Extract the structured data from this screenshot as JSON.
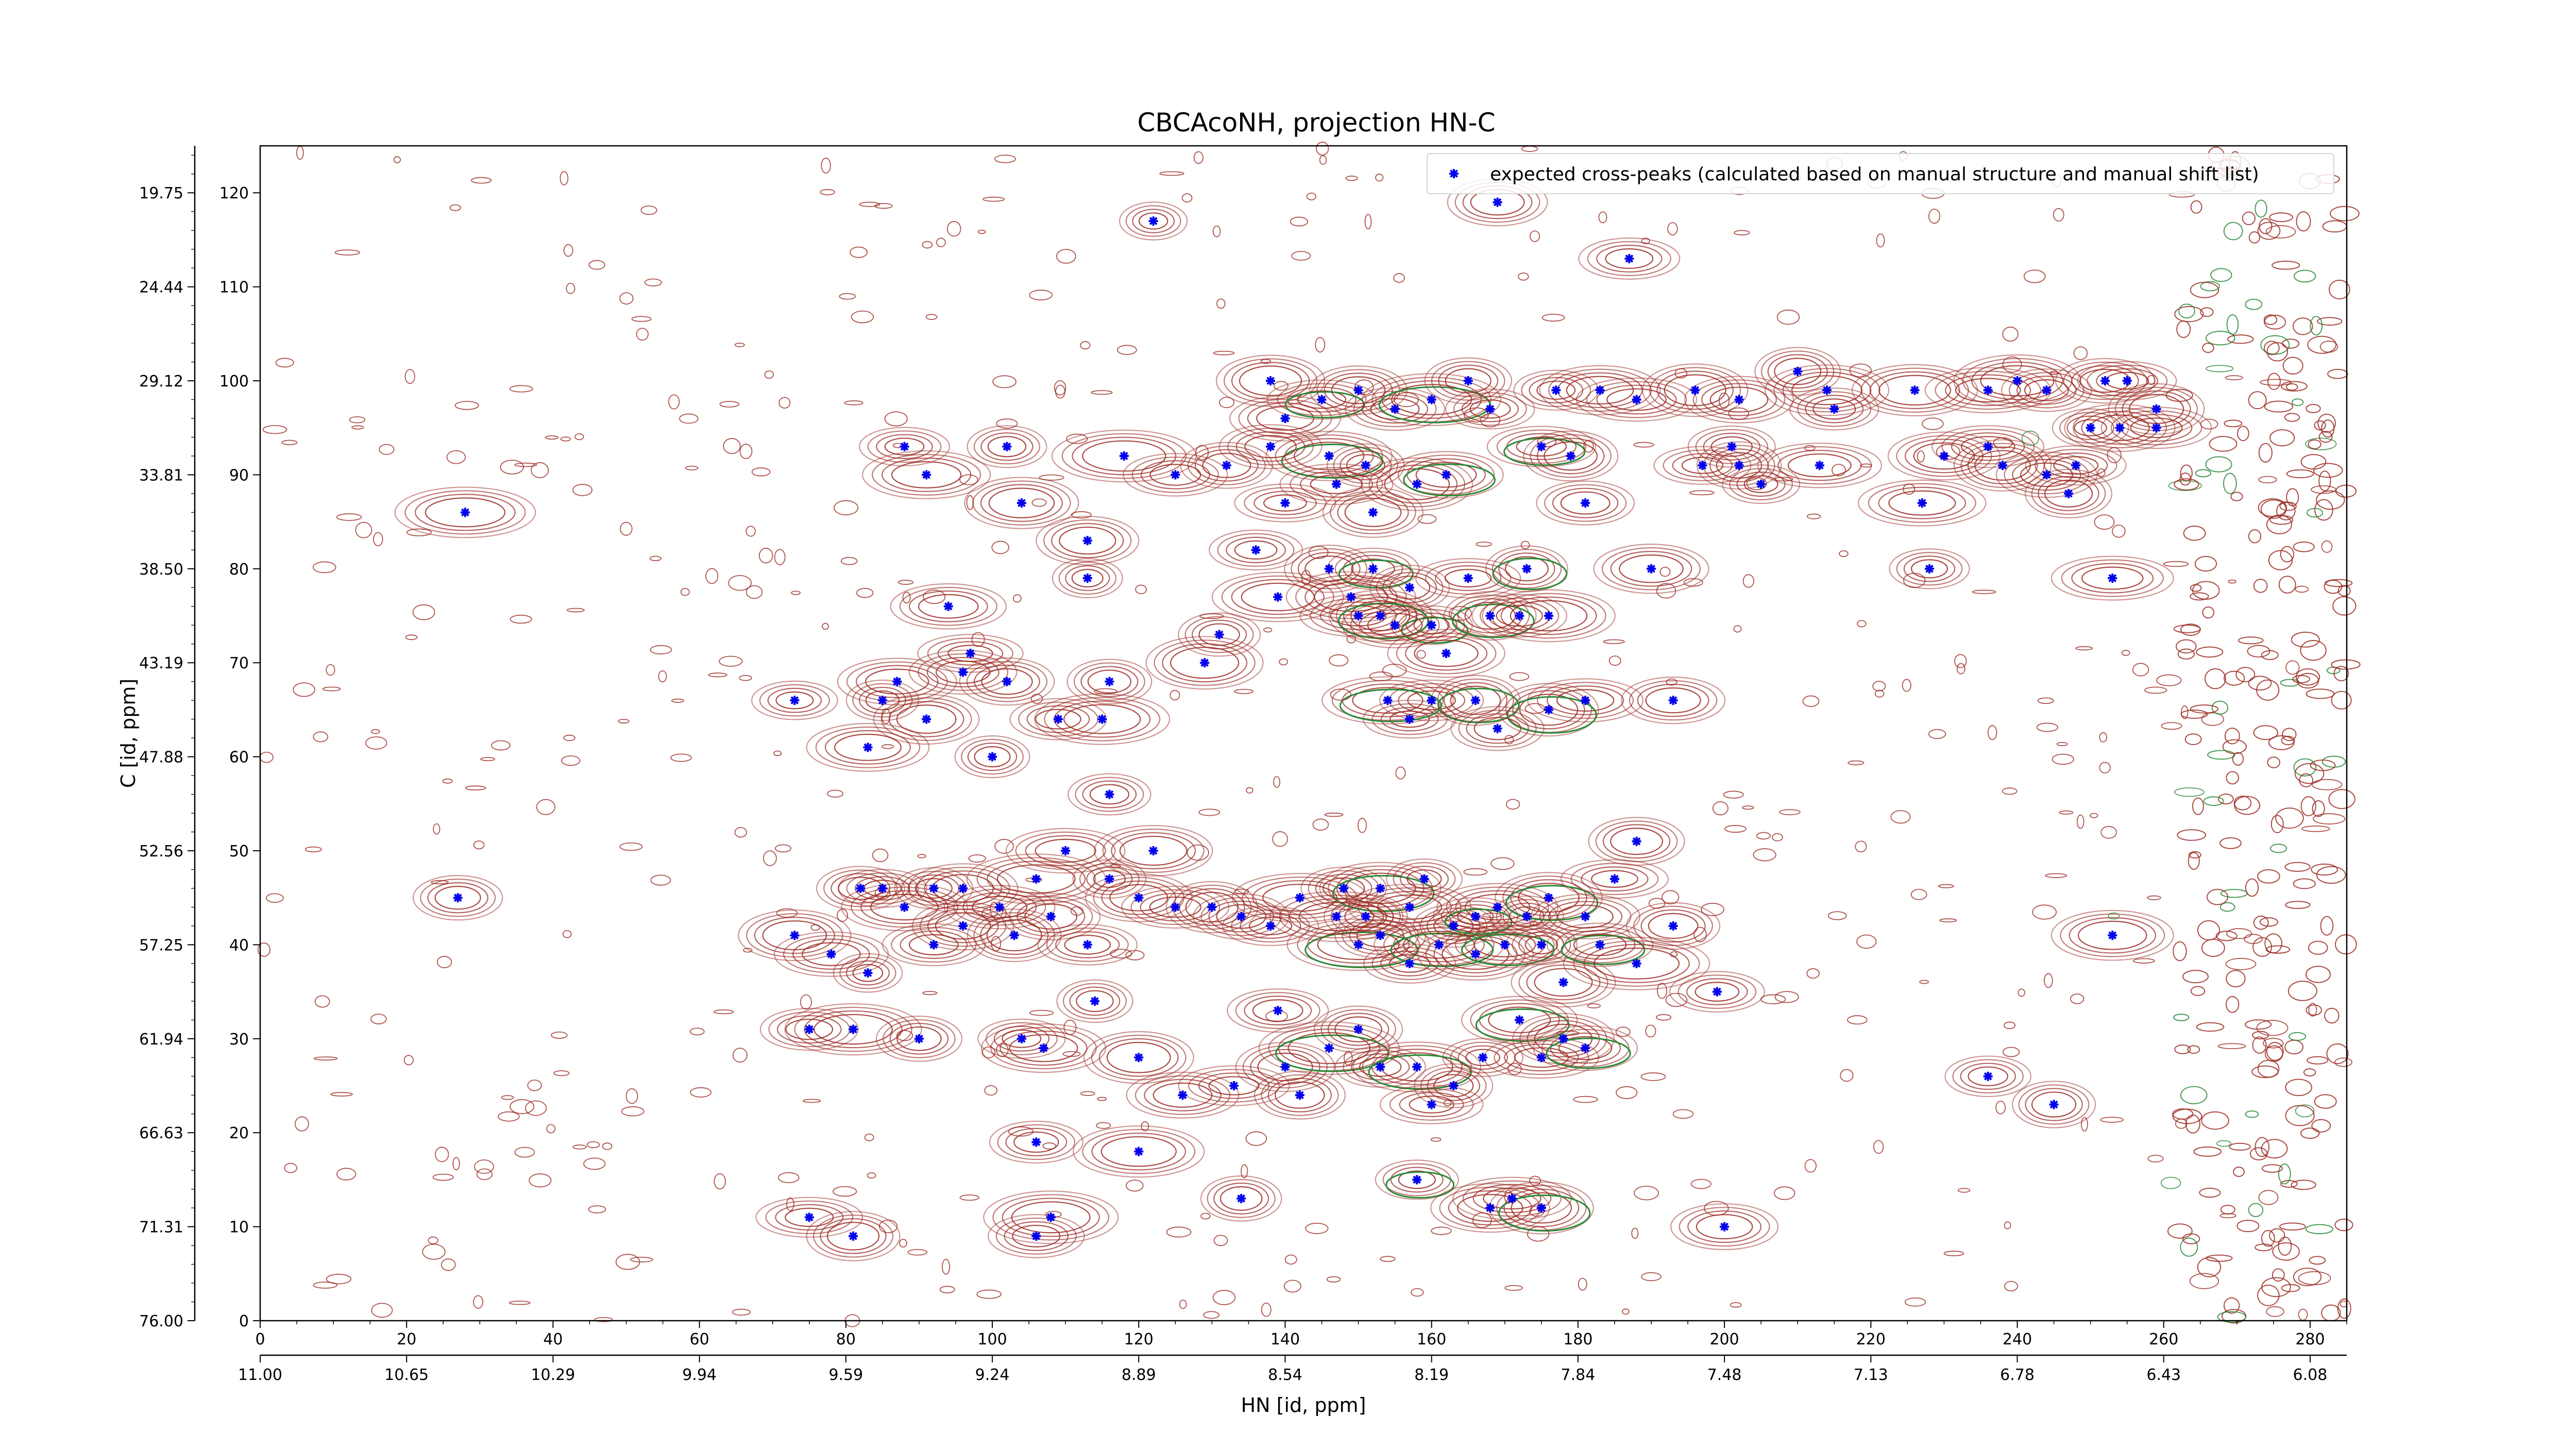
{
  "chart_data": {
    "type": "contour-scatter",
    "title": "CBCAcoNH, projection HN-C",
    "xlabel": "HN [id, ppm]",
    "ylabel": "C [id, ppm]",
    "xlim": [
      0,
      285
    ],
    "ylim": [
      0,
      125
    ],
    "x_ticks": [
      0,
      20,
      40,
      60,
      80,
      100,
      120,
      140,
      160,
      180,
      200,
      220,
      240,
      260,
      280
    ],
    "y_ticks": [
      0,
      10,
      20,
      30,
      40,
      50,
      60,
      70,
      80,
      90,
      100,
      110,
      120
    ],
    "secondary_x_ticks": [
      "11.00",
      "10.65",
      "10.29",
      "9.94",
      "9.59",
      "9.24",
      "8.89",
      "8.54",
      "8.19",
      "7.84",
      "7.48",
      "7.13",
      "6.78",
      "6.43",
      "6.08"
    ],
    "secondary_y_ticks": [
      "76.00",
      "71.31",
      "66.63",
      "61.94",
      "57.25",
      "52.56",
      "47.88",
      "43.19",
      "38.50",
      "33.81",
      "29.12",
      "24.44",
      "19.75"
    ],
    "legend": {
      "placement": "top-right",
      "label": "expected cross-peaks (calculated based on manual structure and manual shift list)"
    },
    "colors": {
      "marker": "#0000ee",
      "positive_contour": "#9b2b22",
      "negative_contour": "#2a8a3a"
    },
    "series": [
      {
        "name": "expected cross-peaks (calculated based on manual structure and manual shift list)",
        "points": [
          [
            122,
            117
          ],
          [
            169,
            119
          ],
          [
            187,
            113
          ],
          [
            28,
            86
          ],
          [
            27,
            45
          ],
          [
            88,
            93
          ],
          [
            91,
            90
          ],
          [
            102,
            93
          ],
          [
            104,
            87
          ],
          [
            94,
            76
          ],
          [
            113,
            79
          ],
          [
            113,
            83
          ],
          [
            125,
            90
          ],
          [
            118,
            92
          ],
          [
            132,
            91
          ],
          [
            136,
            82
          ],
          [
            139,
            77
          ],
          [
            131,
            73
          ],
          [
            129,
            70
          ],
          [
            87,
            68
          ],
          [
            85,
            66
          ],
          [
            91,
            64
          ],
          [
            96,
            69
          ],
          [
            97,
            71
          ],
          [
            102,
            68
          ],
          [
            109,
            64
          ],
          [
            115,
            64
          ],
          [
            116,
            68
          ],
          [
            73,
            66
          ],
          [
            83,
            61
          ],
          [
            100,
            60
          ],
          [
            138,
            100
          ],
          [
            140,
            96
          ],
          [
            145,
            98
          ],
          [
            150,
            99
          ],
          [
            155,
            97
          ],
          [
            160,
            98
          ],
          [
            165,
            100
          ],
          [
            168,
            97
          ],
          [
            146,
            92
          ],
          [
            151,
            91
          ],
          [
            158,
            89
          ],
          [
            162,
            90
          ],
          [
            147,
            89
          ],
          [
            152,
            86
          ],
          [
            138,
            93
          ],
          [
            140,
            87
          ],
          [
            146,
            80
          ],
          [
            152,
            80
          ],
          [
            149,
            77
          ],
          [
            157,
            78
          ],
          [
            160,
            74
          ],
          [
            162,
            71
          ],
          [
            150,
            75
          ],
          [
            153,
            75
          ],
          [
            155,
            74
          ],
          [
            165,
            79
          ],
          [
            168,
            75
          ],
          [
            172,
            75
          ],
          [
            176,
            75
          ],
          [
            173,
            80
          ],
          [
            177,
            99
          ],
          [
            183,
            99
          ],
          [
            188,
            98
          ],
          [
            196,
            99
          ],
          [
            202,
            98
          ],
          [
            175,
            93
          ],
          [
            179,
            92
          ],
          [
            181,
            87
          ],
          [
            197,
            91
          ],
          [
            202,
            91
          ],
          [
            201,
            93
          ],
          [
            214,
            99
          ],
          [
            213,
            91
          ],
          [
            205,
            89
          ],
          [
            230,
            92
          ],
          [
            236,
            93
          ],
          [
            238,
            91
          ],
          [
            244,
            90
          ],
          [
            248,
            91
          ],
          [
            247,
            88
          ],
          [
            244,
            99
          ],
          [
            240,
            100
          ],
          [
            227,
            87
          ],
          [
            228,
            80
          ],
          [
            190,
            80
          ],
          [
            181,
            66
          ],
          [
            176,
            65
          ],
          [
            193,
            66
          ],
          [
            160,
            66
          ],
          [
            166,
            66
          ],
          [
            169,
            63
          ],
          [
            157,
            64
          ],
          [
            154,
            66
          ],
          [
            116,
            56
          ],
          [
            122,
            50
          ],
          [
            110,
            50
          ],
          [
            116,
            47
          ],
          [
            120,
            45
          ],
          [
            125,
            44
          ],
          [
            130,
            44
          ],
          [
            134,
            43
          ],
          [
            138,
            42
          ],
          [
            142,
            45
          ],
          [
            148,
            46
          ],
          [
            153,
            46
          ],
          [
            157,
            44
          ],
          [
            159,
            47
          ],
          [
            96,
            46
          ],
          [
            101,
            44
          ],
          [
            103,
            41
          ],
          [
            108,
            43
          ],
          [
            113,
            40
          ],
          [
            106,
            47
          ],
          [
            82,
            46
          ],
          [
            85,
            46
          ],
          [
            88,
            44
          ],
          [
            92,
            46
          ],
          [
            73,
            41
          ],
          [
            78,
            39
          ],
          [
            83,
            37
          ],
          [
            96,
            42
          ],
          [
            92,
            40
          ],
          [
            150,
            40
          ],
          [
            153,
            41
          ],
          [
            157,
            38
          ],
          [
            161,
            40
          ],
          [
            163,
            42
          ],
          [
            166,
            39
          ],
          [
            170,
            40
          ],
          [
            175,
            40
          ],
          [
            178,
            36
          ],
          [
            183,
            40
          ],
          [
            188,
            38
          ],
          [
            193,
            42
          ],
          [
            199,
            35
          ],
          [
            147,
            43
          ],
          [
            151,
            43
          ],
          [
            166,
            43
          ],
          [
            169,
            44
          ],
          [
            173,
            43
          ],
          [
            176,
            45
          ],
          [
            181,
            43
          ],
          [
            185,
            47
          ],
          [
            188,
            51
          ],
          [
            75,
            31
          ],
          [
            81,
            31
          ],
          [
            90,
            30
          ],
          [
            104,
            30
          ],
          [
            107,
            29
          ],
          [
            114,
            34
          ],
          [
            120,
            28
          ],
          [
            126,
            24
          ],
          [
            133,
            25
          ],
          [
            140,
            27
          ],
          [
            139,
            33
          ],
          [
            146,
            29
          ],
          [
            150,
            31
          ],
          [
            153,
            27
          ],
          [
            158,
            27
          ],
          [
            163,
            25
          ],
          [
            167,
            28
          ],
          [
            172,
            32
          ],
          [
            175,
            28
          ],
          [
            178,
            30
          ],
          [
            181,
            29
          ],
          [
            160,
            23
          ],
          [
            142,
            24
          ],
          [
            106,
            19
          ],
          [
            120,
            18
          ],
          [
            134,
            13
          ],
          [
            158,
            15
          ],
          [
            168,
            12
          ],
          [
            171,
            13
          ],
          [
            175,
            12
          ],
          [
            200,
            10
          ],
          [
            75,
            11
          ],
          [
            81,
            9
          ],
          [
            106,
            9
          ],
          [
            108,
            11
          ],
          [
            245,
            23
          ],
          [
            236,
            26
          ],
          [
            253,
            41
          ],
          [
            253,
            79
          ],
          [
            250,
            95
          ],
          [
            254,
            95
          ],
          [
            259,
            95
          ],
          [
            259,
            97
          ],
          [
            252,
            100
          ],
          [
            255,
            100
          ],
          [
            210,
            101
          ],
          [
            215,
            97
          ],
          [
            226,
            99
          ],
          [
            236,
            99
          ]
        ]
      }
    ]
  }
}
